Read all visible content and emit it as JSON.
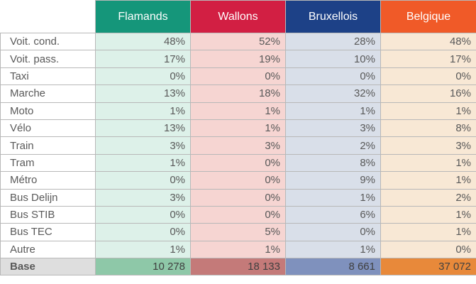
{
  "columns": [
    "Flamands",
    "Wallons",
    "Bruxellois",
    "Belgique"
  ],
  "header_colors": {
    "flamands": "#15967a",
    "wallons": "#d21f43",
    "bruxellois": "#1d4187",
    "belgique": "#f05a28"
  },
  "rows": [
    {
      "label": "Voit. cond.",
      "values": [
        "48%",
        "52%",
        "28%",
        "48%"
      ]
    },
    {
      "label": "Voit. pass.",
      "values": [
        "17%",
        "19%",
        "10%",
        "17%"
      ]
    },
    {
      "label": "Taxi",
      "values": [
        "0%",
        "0%",
        "0%",
        "0%"
      ]
    },
    {
      "label": "Marche",
      "values": [
        "13%",
        "18%",
        "32%",
        "16%"
      ]
    },
    {
      "label": "Moto",
      "values": [
        "1%",
        "1%",
        "1%",
        "1%"
      ]
    },
    {
      "label": "Vélo",
      "values": [
        "13%",
        "1%",
        "3%",
        "8%"
      ]
    },
    {
      "label": "Train",
      "values": [
        "3%",
        "3%",
        "2%",
        "3%"
      ]
    },
    {
      "label": "Tram",
      "values": [
        "1%",
        "0%",
        "8%",
        "1%"
      ]
    },
    {
      "label": "Métro",
      "values": [
        "0%",
        "0%",
        "9%",
        "1%"
      ]
    },
    {
      "label": "Bus Delijn",
      "values": [
        "3%",
        "0%",
        "1%",
        "2%"
      ]
    },
    {
      "label": "Bus STIB",
      "values": [
        "0%",
        "0%",
        "6%",
        "1%"
      ]
    },
    {
      "label": "Bus TEC",
      "values": [
        "0%",
        "5%",
        "0%",
        "1%"
      ]
    },
    {
      "label": "Autre",
      "values": [
        "1%",
        "1%",
        "1%",
        "0%"
      ]
    }
  ],
  "base": {
    "label": "Base",
    "values": [
      "10 278",
      "18 133",
      "8 661",
      "37 072"
    ]
  }
}
